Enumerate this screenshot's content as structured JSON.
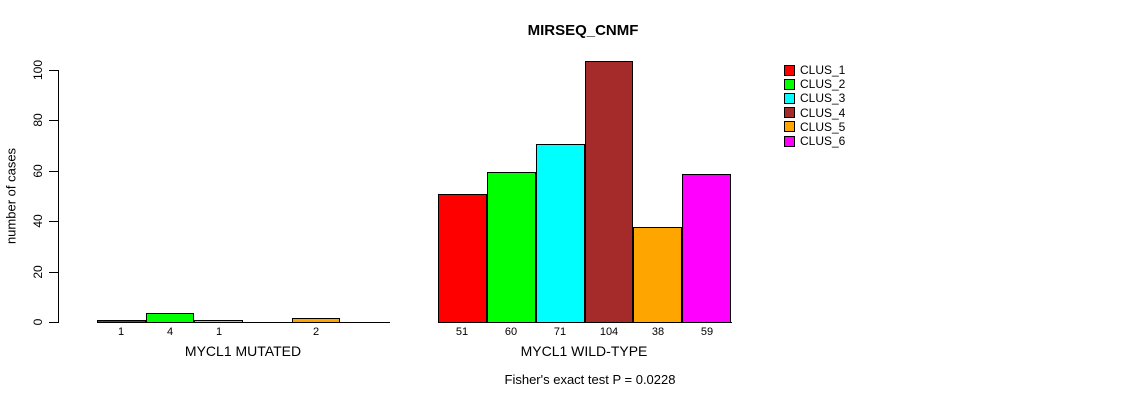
{
  "title": "MIRSEQ_CNMF",
  "y_axis": {
    "label": "number of cases",
    "tick_labels": [
      "0",
      "20",
      "40",
      "60",
      "80",
      "100"
    ]
  },
  "footer": {
    "text": "Fisher's exact test P = 0.0228"
  },
  "legend": {
    "items": [
      {
        "label": "CLUS_1",
        "color": "#FF0000"
      },
      {
        "label": "CLUS_2",
        "color": "#00FF00"
      },
      {
        "label": "CLUS_3",
        "color": "#00FFFF"
      },
      {
        "label": "CLUS_4",
        "color": "#A52A2A"
      },
      {
        "label": "CLUS_5",
        "color": "#FFA500"
      },
      {
        "label": "CLUS_6",
        "color": "#FF00FF"
      }
    ]
  },
  "chart_data": {
    "type": "bar",
    "title": "MIRSEQ_CNMF",
    "xlabel": "",
    "ylabel": "number of cases",
    "ylim": [
      0,
      104
    ],
    "y_ticks": [
      0,
      20,
      40,
      60,
      80,
      100
    ],
    "grid": false,
    "legend_position": "right",
    "legend_entries": [
      "CLUS_1",
      "CLUS_2",
      "CLUS_3",
      "CLUS_4",
      "CLUS_5",
      "CLUS_6"
    ],
    "series_colors": [
      "#FF0000",
      "#00FF00",
      "#00FFFF",
      "#A52A2A",
      "#FFA500",
      "#FF00FF"
    ],
    "groups": [
      {
        "label": "MYCL1 MUTATED",
        "values": [
          1,
          4,
          1,
          0,
          2,
          0
        ],
        "value_labels": [
          "1",
          "4",
          "1",
          "",
          "2",
          ""
        ]
      },
      {
        "label": "MYCL1 WILD-TYPE",
        "values": [
          51,
          60,
          71,
          104,
          38,
          59
        ],
        "value_labels": [
          "51",
          "60",
          "71",
          "104",
          "38",
          "59"
        ]
      }
    ],
    "annotation": "Fisher's exact test P = 0.0228"
  }
}
